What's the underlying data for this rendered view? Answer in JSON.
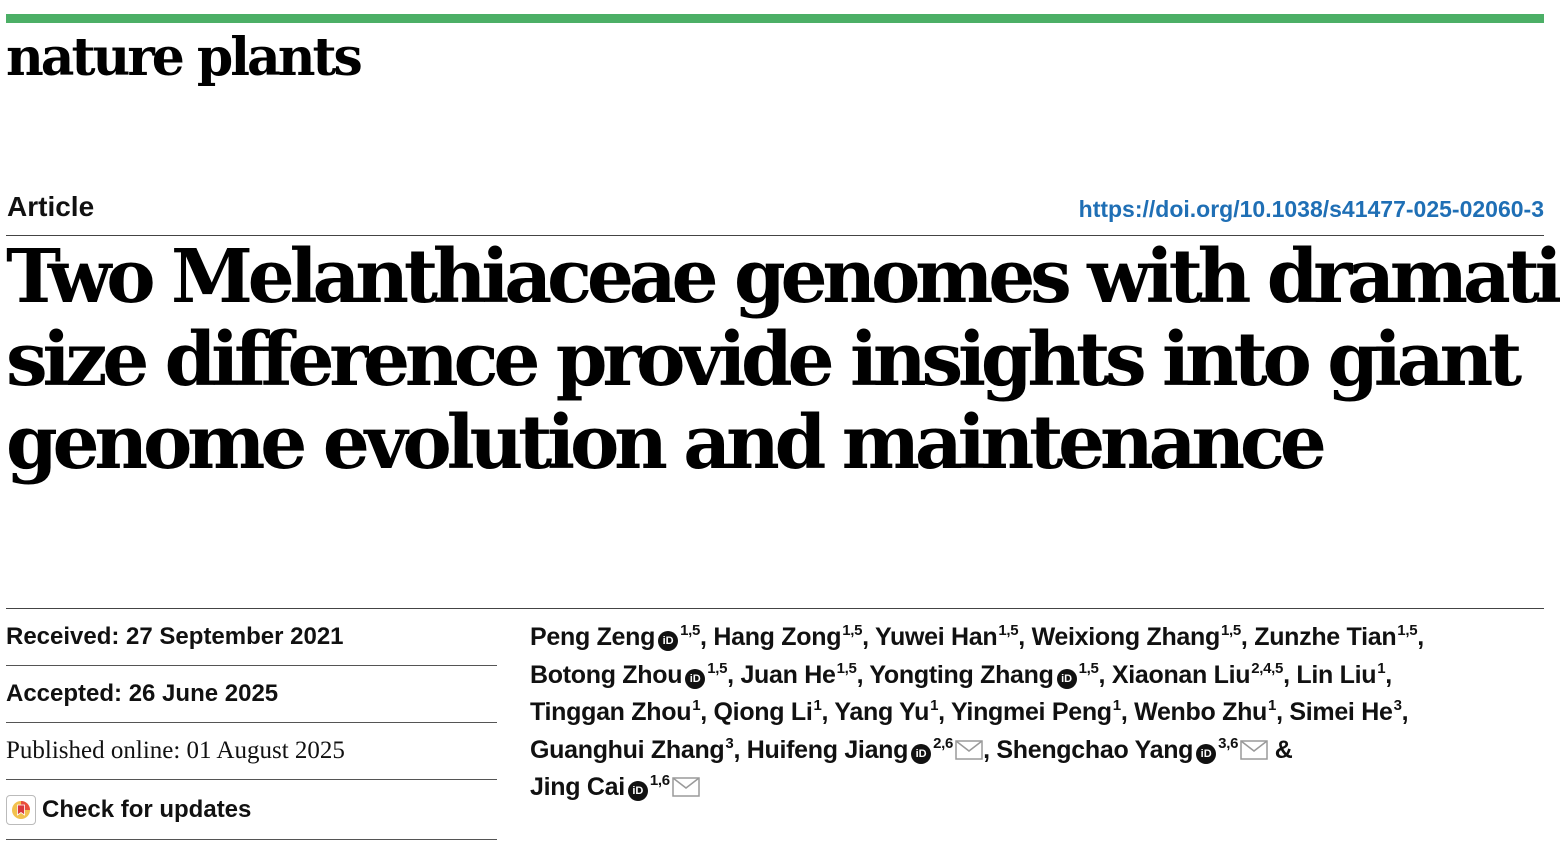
{
  "journal": {
    "name": "nature plants",
    "accent_color": "#4caf66"
  },
  "article": {
    "type": "Article",
    "doi": "https://doi.org/10.1038/s41477-025-02060-3",
    "title_lines": [
      "Two Melanthiaceae genomes with dramatic",
      "size difference provide insights into giant",
      "genome evolution and maintenance"
    ]
  },
  "dates": {
    "received": "Received: 27 September 2021",
    "accepted": "Accepted: 26 June 2025",
    "published": "Published online: 01 August 2025",
    "check_updates": "Check for updates"
  },
  "authors": [
    {
      "name": "Peng Zeng",
      "orcid": true,
      "aff": "1,5",
      "email": false,
      "sep": ", "
    },
    {
      "name": "Hang Zong",
      "orcid": false,
      "aff": "1,5",
      "email": false,
      "sep": ", "
    },
    {
      "name": "Yuwei Han",
      "orcid": false,
      "aff": "1,5",
      "email": false,
      "sep": ", "
    },
    {
      "name": "Weixiong Zhang",
      "orcid": false,
      "aff": "1,5",
      "email": false,
      "sep": ", "
    },
    {
      "name": "Zunzhe Tian",
      "orcid": false,
      "aff": "1,5",
      "email": false,
      "sep": ", "
    },
    {
      "name": "Botong Zhou",
      "orcid": true,
      "aff": "1,5",
      "email": false,
      "sep": ", "
    },
    {
      "name": "Juan He",
      "orcid": false,
      "aff": "1,5",
      "email": false,
      "sep": ", "
    },
    {
      "name": "Yongting Zhang",
      "orcid": true,
      "aff": "1,5",
      "email": false,
      "sep": ", "
    },
    {
      "name": "Xiaonan Liu",
      "orcid": false,
      "aff": "2,4,5",
      "email": false,
      "sep": ", "
    },
    {
      "name": "Lin Liu",
      "orcid": false,
      "aff": "1",
      "email": false,
      "sep": ", "
    },
    {
      "name": "Tinggan Zhou",
      "orcid": false,
      "aff": "1",
      "email": false,
      "sep": ", "
    },
    {
      "name": "Qiong Li",
      "orcid": false,
      "aff": "1",
      "email": false,
      "sep": ", "
    },
    {
      "name": "Yang Yu",
      "orcid": false,
      "aff": "1",
      "email": false,
      "sep": ", "
    },
    {
      "name": "Yingmei Peng",
      "orcid": false,
      "aff": "1",
      "email": false,
      "sep": ", "
    },
    {
      "name": "Wenbo Zhu",
      "orcid": false,
      "aff": "1",
      "email": false,
      "sep": ", "
    },
    {
      "name": "Simei He",
      "orcid": false,
      "aff": "3",
      "email": false,
      "sep": ", "
    },
    {
      "name": "Guanghui Zhang",
      "orcid": false,
      "aff": "3",
      "email": false,
      "sep": ", "
    },
    {
      "name": "Huifeng Jiang",
      "orcid": true,
      "aff": "2,6",
      "email": true,
      "sep": ", "
    },
    {
      "name": "Shengchao Yang",
      "orcid": true,
      "aff": "3,6",
      "email": true,
      "sep": " & "
    },
    {
      "name": "Jing Cai",
      "orcid": true,
      "aff": "1,6",
      "email": true,
      "sep": ""
    }
  ],
  "author_breaks_after": [
    4,
    9,
    15,
    18
  ],
  "icons": {
    "orcid": "orcid-icon",
    "email": "envelope-icon",
    "updates": "check-updates-icon",
    "orcid_label": "iD"
  }
}
